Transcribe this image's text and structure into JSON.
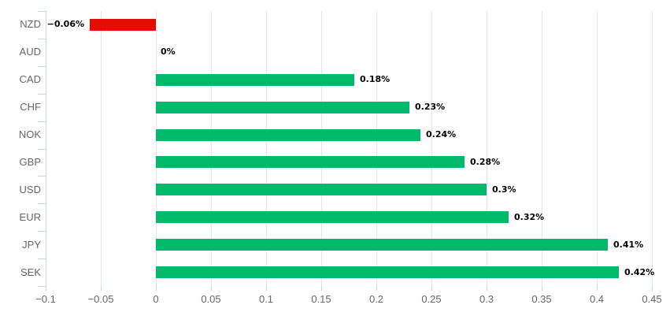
{
  "chart_data": {
    "type": "bar",
    "orientation": "horizontal",
    "title": "",
    "xlabel": "",
    "ylabel": "",
    "categories": [
      "NZD",
      "AUD",
      "CAD",
      "CHF",
      "NOK",
      "GBP",
      "USD",
      "EUR",
      "JPY",
      "SEK"
    ],
    "values": [
      -0.06,
      0,
      0.18,
      0.23,
      0.24,
      0.28,
      0.3,
      0.32,
      0.41,
      0.42
    ],
    "data_labels": [
      "−0.06%",
      "0%",
      "0.18%",
      "0.23%",
      "0.24%",
      "0.28%",
      "0.3%",
      "0.32%",
      "0.41%",
      "0.42%"
    ],
    "xlim": [
      -0.1,
      0.45
    ],
    "xticks": {
      "values": [
        -0.1,
        -0.05,
        0,
        0.05,
        0.1,
        0.15,
        0.2,
        0.25,
        0.3,
        0.35,
        0.4,
        0.45
      ],
      "labels": [
        "−0.1",
        "−0.05",
        "0",
        "0.05",
        "0.1",
        "0.15",
        "0.2",
        "0.25",
        "0.3",
        "0.35",
        "0.4",
        "0.45"
      ]
    },
    "grid": true,
    "legend": "none",
    "colors": {
      "positive": "#00b96b",
      "negative": "#e00d00",
      "gridline": "#e6e6e6",
      "axis_line": "#ccd6eb",
      "axis_text": "#666666",
      "data_label_text": "#000000",
      "background": "#ffffff"
    }
  }
}
